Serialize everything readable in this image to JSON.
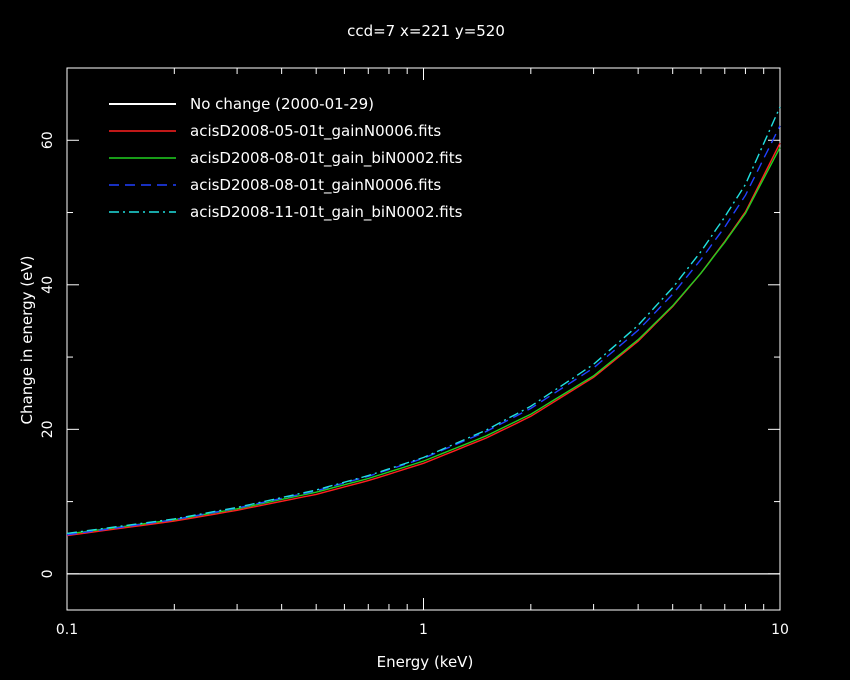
{
  "chart_data": {
    "type": "line",
    "title": "ccd=7 x=221 y=520",
    "xlabel": "Energy (keV)",
    "ylabel": "Change in energy (eV)",
    "xscale": "log",
    "xlim": [
      0.1,
      10
    ],
    "ylim": [
      -5,
      70
    ],
    "grid": false,
    "legend_position": "top-left",
    "x_ticks": [
      {
        "value": 0.1,
        "label": "0.1"
      },
      {
        "value": 1,
        "label": "1"
      },
      {
        "value": 10,
        "label": "10"
      }
    ],
    "y_ticks": [
      {
        "value": 0,
        "label": "0"
      },
      {
        "value": 20,
        "label": "20"
      },
      {
        "value": 40,
        "label": "40"
      },
      {
        "value": 60,
        "label": "60"
      }
    ],
    "series": [
      {
        "name": "No change (2000-01-29)",
        "color": "#ffffff",
        "style": "solid",
        "x": [
          0.1,
          10
        ],
        "y": [
          0,
          0
        ]
      },
      {
        "name": "acisD2008-05-01t_gainN0006.fits",
        "color": "#ff2020",
        "style": "solid",
        "x": [
          0.1,
          0.2,
          0.3,
          0.5,
          0.7,
          1,
          1.5,
          2,
          3,
          4,
          5,
          6,
          7,
          8,
          10
        ],
        "y": [
          5.3,
          7.3,
          8.8,
          11.0,
          12.9,
          15.3,
          18.8,
          21.8,
          27.2,
          32.2,
          37.0,
          41.6,
          46.0,
          50.1,
          59.6
        ]
      },
      {
        "name": "acisD2008-08-01t_gain_biN0002.fits",
        "color": "#20d020",
        "style": "solid",
        "x": [
          0.1,
          0.2,
          0.3,
          0.5,
          0.7,
          1,
          1.5,
          2,
          3,
          4,
          5,
          6,
          7,
          8,
          10
        ],
        "y": [
          5.5,
          7.5,
          9.0,
          11.3,
          13.2,
          15.6,
          19.1,
          22.1,
          27.4,
          32.4,
          37.1,
          41.6,
          45.9,
          49.9,
          59.0
        ]
      },
      {
        "name": "acisD2008-08-01t_gainN0006.fits",
        "color": "#2040ff",
        "style": "dashed",
        "x": [
          0.1,
          0.2,
          0.3,
          0.5,
          0.7,
          1,
          1.5,
          2,
          3,
          4,
          5,
          6,
          7,
          8,
          10
        ],
        "y": [
          5.4,
          7.5,
          9.1,
          11.5,
          13.5,
          16.0,
          19.7,
          22.9,
          28.5,
          33.7,
          38.7,
          43.5,
          48.0,
          52.4,
          62.0
        ]
      },
      {
        "name": "acisD2008-11-01t_gain_biN0002.fits",
        "color": "#20e0e0",
        "style": "dashdot",
        "x": [
          0.1,
          0.2,
          0.3,
          0.5,
          0.7,
          1,
          1.5,
          2,
          3,
          4,
          5,
          6,
          7,
          8,
          10
        ],
        "y": [
          5.6,
          7.6,
          9.2,
          11.6,
          13.6,
          16.1,
          19.9,
          23.2,
          29.0,
          34.4,
          39.6,
          44.6,
          49.4,
          53.9,
          64.6
        ]
      }
    ]
  }
}
